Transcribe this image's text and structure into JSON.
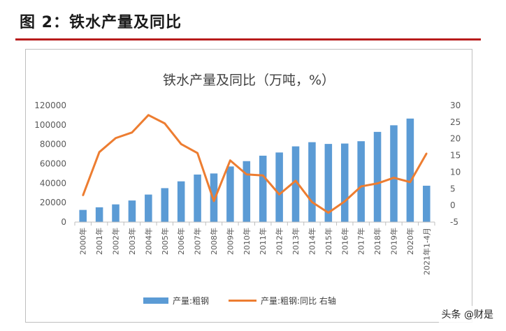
{
  "header": {
    "figure_title": "图 2：铁水产量及同比"
  },
  "watermark": "头条 @财是",
  "colors": {
    "bar": "#5b9bd5",
    "line": "#ed7d31",
    "rule": "#b81c1c"
  },
  "chart_data": {
    "type": "bar",
    "title": "铁水产量及同比（万吨，%）",
    "categories": [
      "2000年",
      "2001年",
      "2002年",
      "2003年",
      "2004年",
      "2005年",
      "2006年",
      "2007年",
      "2008年",
      "2009年",
      "2010年",
      "2011年",
      "2012年",
      "2013年",
      "2014年",
      "2015年",
      "2016年",
      "2017年",
      "2018年",
      "2019年",
      "2020年",
      "2021年1-4月"
    ],
    "series": [
      {
        "name": "产量:粗钢",
        "type": "bar",
        "axis": "left",
        "values": [
          12500,
          15200,
          18200,
          22200,
          28300,
          34900,
          41900,
          48900,
          50000,
          57200,
          62700,
          68300,
          71600,
          77900,
          82200,
          80400,
          80800,
          83200,
          92800,
          99600,
          106500,
          37400
        ]
      },
      {
        "name": "产量:粗钢:同比 右轴",
        "type": "line",
        "axis": "right",
        "values": [
          3,
          16,
          20.2,
          21.9,
          27.1,
          24.6,
          18.4,
          15.7,
          1.3,
          13.5,
          9.3,
          9,
          3.3,
          7.4,
          1,
          -2.2,
          1.2,
          5.7,
          6.6,
          8.3,
          7,
          15.6
        ]
      }
    ],
    "y_left": {
      "ticks": [
        "0",
        "20000",
        "40000",
        "60000",
        "80000",
        "100000",
        "120000"
      ],
      "range": [
        0,
        120000
      ]
    },
    "y_right": {
      "ticks": [
        "-5",
        "0",
        "5",
        "10",
        "15",
        "20",
        "25",
        "30"
      ],
      "range": [
        -5,
        30
      ]
    },
    "legend": {
      "position": "bottom",
      "items": [
        "产量:粗钢",
        "产量:粗钢:同比  右轴"
      ]
    },
    "grid": false
  }
}
